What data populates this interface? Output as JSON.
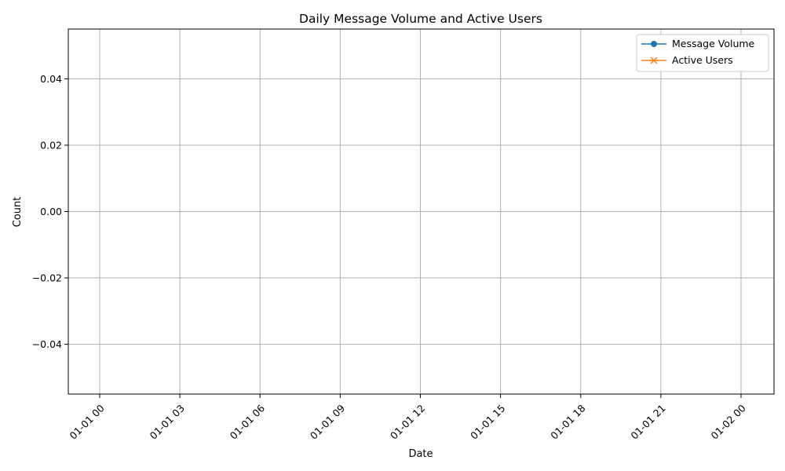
{
  "chart_data": {
    "type": "line",
    "title": "Daily Message Volume and Active Users",
    "xlabel": "Date",
    "ylabel": "Count",
    "x_ticks": [
      "01-01 00",
      "01-01 03",
      "01-01 06",
      "01-01 09",
      "01-01 12",
      "01-01 15",
      "01-01 18",
      "01-01 21",
      "01-02 00"
    ],
    "y_ticks": [
      0.04,
      0.02,
      0.0,
      -0.02,
      -0.04
    ],
    "y_tick_labels": [
      "0.04",
      "0.02",
      "0.00",
      "−0.02",
      "−0.04"
    ],
    "ylim": [
      -0.055,
      0.055
    ],
    "grid": true,
    "legend_position": "top-right",
    "series": [
      {
        "name": "Message Volume",
        "marker": "circle",
        "color": "#1f77b4",
        "values": []
      },
      {
        "name": "Active Users",
        "marker": "x",
        "color": "#ff7f0e",
        "values": []
      }
    ]
  }
}
